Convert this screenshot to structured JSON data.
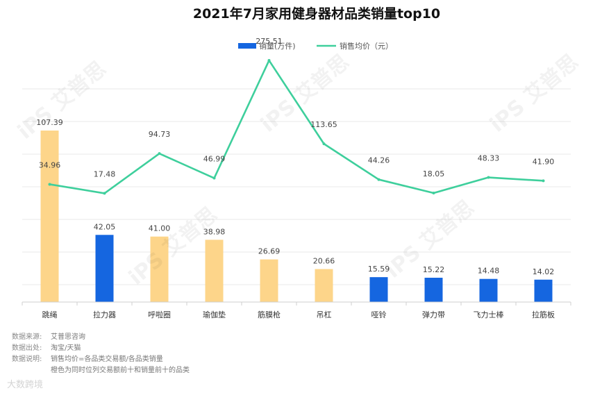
{
  "chart_data": {
    "type": "bar+line",
    "title": "2021年7月家用健身器材品类销量top10",
    "categories": [
      "跳绳",
      "拉力器",
      "呼啦圈",
      "瑜伽垫",
      "筋膜枪",
      "吊杠",
      "哑铃",
      "弹力带",
      "飞力士棒",
      "拉筋板"
    ],
    "series": [
      {
        "name": "销量(万件)",
        "type": "bar",
        "values": [
          107.39,
          42.05,
          41.0,
          38.98,
          26.69,
          20.66,
          15.59,
          15.22,
          14.48,
          14.02
        ],
        "labels": [
          "107.39",
          "42.05",
          "41.00",
          "38.98",
          "26.69",
          "20.66",
          "15.59",
          "15.22",
          "14.48",
          "14.02"
        ],
        "colors": [
          "#fdd58a",
          "#1566e0",
          "#fdd58a",
          "#fdd58a",
          "#fdd58a",
          "#fdd58a",
          "#1566e0",
          "#1566e0",
          "#1566e0",
          "#1566e0"
        ]
      },
      {
        "name": "销售均价（元）",
        "type": "line",
        "values": [
          34.96,
          17.48,
          94.73,
          46.99,
          275.51,
          113.65,
          44.26,
          18.05,
          48.33,
          41.9
        ],
        "labels": [
          "34.96",
          "17.48",
          "94.73",
          "46.99",
          "275.51",
          "113.65",
          "44.26",
          "18.05",
          "48.33",
          "41.90"
        ],
        "color": "#3ecf9c"
      }
    ],
    "legend_position": "top-center",
    "grid": true
  },
  "notes": [
    {
      "key": "数据来源:",
      "value": "艾普思咨询"
    },
    {
      "key": "数据出处:",
      "value": "淘宝/天猫"
    },
    {
      "key": "数据说明:",
      "value": "销售均价=各品类交易额/各品类销量"
    },
    {
      "key": "",
      "value": "橙色为同时位列交易额前十和销量前十的品类"
    }
  ],
  "watermark": "iPS 艾普思",
  "footer_brand": "大数跨境"
}
